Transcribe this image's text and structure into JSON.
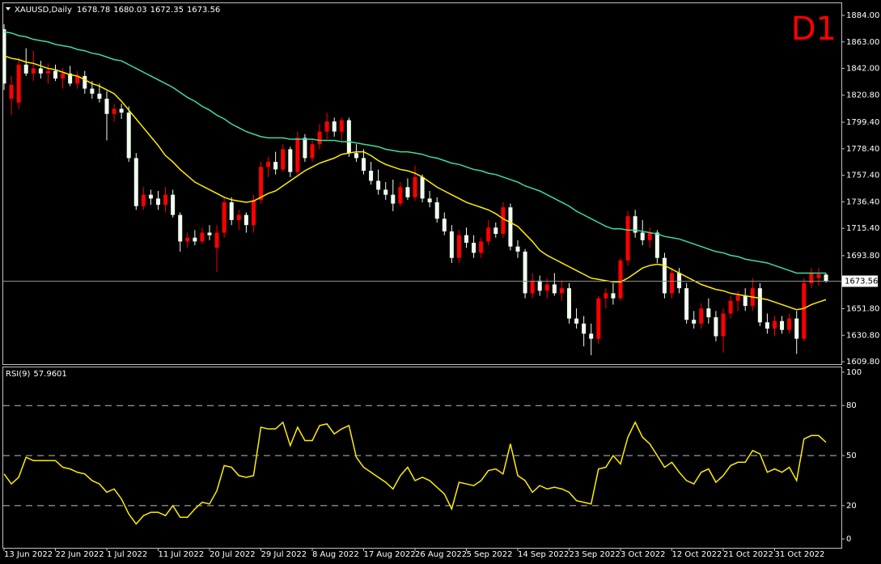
{
  "chart_data": [
    {
      "type": "candlestick",
      "title": "XAUUSD,Daily",
      "annotation": "D1",
      "categories": [
        "13 Jun 2022",
        null,
        null,
        null,
        null,
        null,
        null,
        "22 Jun 2022",
        null,
        null,
        null,
        null,
        null,
        null,
        "1 Jul 2022",
        null,
        null,
        null,
        null,
        null,
        null,
        "11 Jul 2022",
        null,
        null,
        null,
        null,
        null,
        null,
        "20 Jul 2022",
        null,
        null,
        null,
        null,
        null,
        null,
        "29 Jul 2022",
        null,
        null,
        null,
        null,
        null,
        null,
        "8 Aug 2022",
        null,
        null,
        null,
        null,
        null,
        null,
        "17 Aug 2022",
        null,
        null,
        null,
        null,
        null,
        null,
        "26 Aug 2022",
        null,
        null,
        null,
        null,
        null,
        null,
        "5 Sep 2022",
        null,
        null,
        null,
        null,
        null,
        null,
        "14 Sep 2022",
        null,
        null,
        null,
        null,
        null,
        null,
        "23 Sep 2022",
        null,
        null,
        null,
        null,
        null,
        null,
        "3 Oct 2022",
        null,
        null,
        null,
        null,
        null,
        null,
        "12 Oct 2022",
        null,
        null,
        null,
        null,
        null,
        null,
        "21 Oct 2022",
        null,
        null,
        null,
        null,
        null,
        null,
        "31 Oct 2022",
        null,
        null,
        null,
        null,
        null,
        null,
        null
      ],
      "open": [
        1873,
        1818,
        1815,
        1845,
        1838,
        1842,
        1838,
        1840,
        1834,
        1838,
        1830,
        1836,
        1826,
        1822,
        1818,
        1806,
        1810,
        1807,
        1771,
        1733,
        1742,
        1739,
        1734,
        1742,
        1726,
        1705,
        1708,
        1705,
        1712,
        1700,
        1712,
        1736,
        1722,
        1726,
        1718,
        1738,
        1764,
        1768,
        1762,
        1778,
        1760,
        1787,
        1771,
        1782,
        1792,
        1800,
        1792,
        1801,
        1775,
        1771,
        1761,
        1753,
        1746,
        1742,
        1735,
        1748,
        1740,
        1756,
        1739,
        1736,
        1723,
        1713,
        1692,
        1710,
        1704,
        1696,
        1705,
        1716,
        1711,
        1732,
        1701,
        1697,
        1664,
        1674,
        1666,
        1671,
        1664,
        1668,
        1644,
        1640,
        1632,
        1628,
        1660,
        1664,
        1660,
        1690,
        1725,
        1712,
        1706,
        1712,
        1692,
        1664,
        1680,
        1668,
        1643,
        1640,
        1652,
        1645,
        1630,
        1648,
        1658,
        1662,
        1654,
        1668,
        1641,
        1636,
        1642,
        1635,
        1644,
        1628,
        1672,
        1676,
        1678.78
      ],
      "high": [
        1877,
        1836,
        1850,
        1858,
        1856,
        1848,
        1846,
        1845,
        1842,
        1844,
        1840,
        1840,
        1832,
        1830,
        1824,
        1814,
        1814,
        1812,
        1775,
        1748,
        1746,
        1745,
        1748,
        1746,
        1728,
        1712,
        1714,
        1716,
        1718,
        1718,
        1740,
        1740,
        1730,
        1728,
        1742,
        1768,
        1772,
        1776,
        1782,
        1780,
        1792,
        1790,
        1786,
        1798,
        1807,
        1803,
        1803,
        1803,
        1782,
        1778,
        1768,
        1762,
        1752,
        1754,
        1752,
        1755,
        1765,
        1758,
        1745,
        1740,
        1728,
        1718,
        1714,
        1716,
        1710,
        1708,
        1722,
        1720,
        1736,
        1735,
        1706,
        1699,
        1680,
        1678,
        1676,
        1680,
        1674,
        1672,
        1652,
        1646,
        1640,
        1662,
        1668,
        1672,
        1692,
        1729,
        1730,
        1722,
        1716,
        1714,
        1696,
        1684,
        1684,
        1672,
        1650,
        1656,
        1660,
        1650,
        1652,
        1662,
        1666,
        1668,
        1676,
        1672,
        1648,
        1646,
        1646,
        1648,
        1650,
        1676,
        1684,
        1684,
        1680.03
      ],
      "low": [
        1825,
        1805,
        1810,
        1836,
        1832,
        1834,
        1830,
        1832,
        1826,
        1828,
        1826,
        1822,
        1818,
        1815,
        1785,
        1800,
        1802,
        1768,
        1730,
        1730,
        1734,
        1730,
        1728,
        1724,
        1697,
        1700,
        1702,
        1703,
        1706,
        1681,
        1708,
        1718,
        1714,
        1712,
        1712,
        1735,
        1756,
        1758,
        1760,
        1756,
        1758,
        1768,
        1768,
        1778,
        1786,
        1788,
        1785,
        1772,
        1768,
        1758,
        1750,
        1742,
        1738,
        1729,
        1733,
        1738,
        1737,
        1736,
        1732,
        1720,
        1710,
        1688,
        1688,
        1700,
        1692,
        1692,
        1702,
        1708,
        1708,
        1698,
        1692,
        1660,
        1660,
        1662,
        1660,
        1662,
        1658,
        1640,
        1636,
        1622,
        1615,
        1624,
        1652,
        1655,
        1658,
        1686,
        1708,
        1702,
        1700,
        1688,
        1660,
        1660,
        1664,
        1640,
        1636,
        1636,
        1640,
        1626,
        1617,
        1644,
        1650,
        1650,
        1650,
        1638,
        1632,
        1630,
        1632,
        1632,
        1616,
        1626,
        1668,
        1670,
        1672.35
      ],
      "close": [
        1830,
        1829,
        1845,
        1838,
        1842,
        1838,
        1840,
        1834,
        1838,
        1830,
        1836,
        1826,
        1822,
        1818,
        1806,
        1810,
        1807,
        1771,
        1733,
        1742,
        1739,
        1734,
        1742,
        1726,
        1705,
        1708,
        1705,
        1712,
        1710,
        1712,
        1736,
        1722,
        1726,
        1718,
        1738,
        1764,
        1768,
        1762,
        1778,
        1760,
        1787,
        1771,
        1782,
        1792,
        1800,
        1792,
        1801,
        1775,
        1771,
        1761,
        1753,
        1746,
        1742,
        1735,
        1748,
        1740,
        1756,
        1739,
        1736,
        1723,
        1713,
        1692,
        1710,
        1704,
        1696,
        1705,
        1716,
        1711,
        1732,
        1701,
        1697,
        1664,
        1674,
        1666,
        1671,
        1664,
        1668,
        1644,
        1640,
        1632,
        1628,
        1660,
        1664,
        1660,
        1690,
        1725,
        1712,
        1706,
        1712,
        1692,
        1664,
        1680,
        1668,
        1643,
        1640,
        1652,
        1645,
        1630,
        1648,
        1658,
        1662,
        1654,
        1668,
        1641,
        1636,
        1642,
        1635,
        1644,
        1628,
        1672,
        1680,
        1679,
        1673.56
      ],
      "up_color": "#ff0000",
      "down_color": "#f0fff0",
      "price_line_color": "#909090",
      "series": [
        {
          "color": "#ffee00",
          "values": [
            1852,
            1850,
            1849,
            1847,
            1846,
            1844,
            1842,
            1841,
            1839,
            1837,
            1836,
            1833,
            1830,
            1828,
            1825,
            1822,
            1816,
            1809,
            1802,
            1795,
            1788,
            1781,
            1773,
            1768,
            1762,
            1757,
            1752,
            1749,
            1746,
            1743,
            1740,
            1738,
            1737,
            1736,
            1737,
            1740,
            1743,
            1745,
            1749,
            1753,
            1757,
            1761,
            1764,
            1767,
            1769,
            1771,
            1774,
            1775,
            1776,
            1776,
            1773,
            1769,
            1766,
            1764,
            1762,
            1761,
            1759,
            1756,
            1752,
            1748,
            1745,
            1742,
            1739,
            1736,
            1734,
            1732,
            1730,
            1727,
            1723,
            1720,
            1717,
            1711,
            1705,
            1698,
            1694,
            1691,
            1688,
            1685,
            1682,
            1679,
            1676,
            1675,
            1674,
            1673,
            1673,
            1676,
            1680,
            1684,
            1686,
            1687,
            1686,
            1683,
            1680,
            1677,
            1674,
            1671,
            1669,
            1667,
            1666,
            1664,
            1663,
            1662,
            1661,
            1660,
            1659,
            1657,
            1655,
            1653,
            1651,
            1652,
            1655,
            1657,
            1659
          ]
        },
        {
          "color": "#3fdc9f",
          "values": [
            1871,
            1870,
            1868,
            1867,
            1865,
            1864,
            1863,
            1861,
            1860,
            1859,
            1857,
            1856,
            1854,
            1853,
            1851,
            1849,
            1848,
            1845,
            1842,
            1839,
            1836,
            1833,
            1830,
            1827,
            1823,
            1819,
            1816,
            1812,
            1809,
            1805,
            1802,
            1798,
            1795,
            1792,
            1790,
            1788,
            1787,
            1787,
            1787,
            1786,
            1786,
            1786,
            1786,
            1785,
            1785,
            1785,
            1784,
            1784,
            1783,
            1782,
            1781,
            1780,
            1778,
            1777,
            1776,
            1776,
            1775,
            1774,
            1772,
            1771,
            1769,
            1767,
            1766,
            1764,
            1762,
            1761,
            1759,
            1758,
            1756,
            1754,
            1752,
            1749,
            1747,
            1745,
            1742,
            1739,
            1736,
            1733,
            1729,
            1726,
            1723,
            1720,
            1717,
            1715,
            1715,
            1714,
            1714,
            1713,
            1712,
            1711,
            1709,
            1708,
            1707,
            1705,
            1703,
            1701,
            1699,
            1697,
            1696,
            1694,
            1693,
            1691,
            1690,
            1689,
            1688,
            1686,
            1684,
            1682,
            1680,
            1680,
            1680,
            1680,
            1680
          ]
        }
      ],
      "ylim": [
        1607.9,
        1893.6
      ],
      "yticks": [
        {
          "value": 1609.8,
          "label": "1609.80"
        },
        {
          "value": 1630.8,
          "label": "1630.80"
        },
        {
          "value": 1651.8,
          "label": "1651.80"
        },
        {
          "value": 1693.8,
          "label": "1693.80"
        },
        {
          "value": 1715.4,
          "label": "1715.40"
        },
        {
          "value": 1736.4,
          "label": "1736.40"
        },
        {
          "value": 1757.4,
          "label": "1757.40"
        },
        {
          "value": 1778.4,
          "label": "1778.40"
        },
        {
          "value": 1799.4,
          "label": "1799.40"
        },
        {
          "value": 1820.8,
          "label": "1820.80"
        },
        {
          "value": 1842,
          "label": "1842.00"
        },
        {
          "value": 1863,
          "label": "1863.00"
        },
        {
          "value": 1884,
          "label": "1884.00"
        }
      ]
    },
    {
      "type": "line",
      "title": "RSI(9)",
      "series": [
        {
          "color": "#ffee00",
          "values": [
            39,
            33,
            37,
            49,
            47,
            47,
            47,
            47,
            43,
            42,
            40,
            39,
            35,
            33,
            28,
            30,
            24,
            15,
            9,
            14,
            16,
            16,
            14,
            20,
            13,
            13,
            18,
            22,
            21,
            29,
            44,
            43,
            38,
            37,
            38,
            67,
            66,
            66,
            70,
            56,
            67,
            59,
            59,
            68,
            69,
            63,
            66,
            68,
            49,
            43,
            40,
            37,
            34,
            30,
            38,
            43,
            35,
            37,
            35,
            31,
            27,
            18,
            34,
            33,
            32,
            35,
            41,
            42,
            39,
            57,
            38,
            35,
            28,
            32,
            30,
            31,
            30,
            28,
            23,
            22,
            21,
            42,
            43,
            50,
            45,
            61,
            70,
            61,
            57,
            50,
            43,
            46,
            40,
            35,
            33,
            40,
            42,
            34,
            38,
            44,
            46,
            46,
            53,
            51,
            40,
            42,
            40,
            43,
            35,
            60,
            62,
            62,
            57.9601
          ]
        }
      ],
      "ylim": [
        -5.3,
        102.9
      ],
      "yticks": [
        0,
        20,
        50,
        80,
        100
      ],
      "levels": [
        20,
        50,
        80
      ]
    }
  ]
}
